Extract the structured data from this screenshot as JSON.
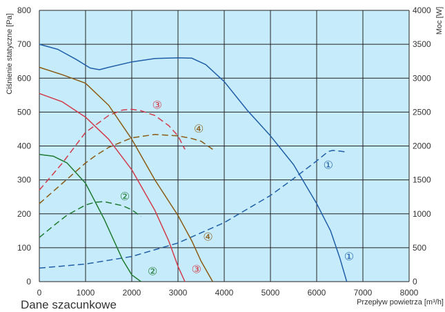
{
  "chart_data": {
    "type": "line",
    "xlabel": "Przepływ powietrza [m³/h]",
    "ylabel_left": "Ciśnienie statyczne [Pa]",
    "ylabel_right": "Moc [W]",
    "xlim": [
      0,
      8000
    ],
    "ylim_left": [
      0,
      800
    ],
    "ylim_right": [
      0,
      4000
    ],
    "x_ticks": [
      "0",
      "1000",
      "2000",
      "3000",
      "4000",
      "5000",
      "6000",
      "7000",
      "8000"
    ],
    "y_left_ticks": [
      "0",
      "100",
      "200",
      "300",
      "400",
      "500",
      "600",
      "700",
      "800"
    ],
    "y_right_ticks": [
      "0",
      "500",
      "1000",
      "1500",
      "2000",
      "2500",
      "3000",
      "3500",
      "4000"
    ],
    "grid": true,
    "background": "#c6ebfa",
    "series": [
      {
        "name": "①",
        "kind": "pressure",
        "axis": "left",
        "color": "#1f5ea8",
        "x": [
          0,
          400,
          800,
          1100,
          1300,
          1500,
          2000,
          2500,
          3000,
          3300,
          3600,
          4000,
          4500,
          5000,
          5500,
          6000,
          6300,
          6500,
          6650
        ],
        "y": [
          700,
          685,
          655,
          630,
          625,
          632,
          648,
          658,
          660,
          659,
          640,
          590,
          505,
          430,
          345,
          230,
          150,
          70,
          0
        ]
      },
      {
        "name": "①",
        "kind": "power",
        "axis": "right",
        "color": "#1f5ea8",
        "x": [
          0,
          1000,
          2000,
          3000,
          4000,
          5000,
          5500,
          6000,
          6250,
          6350,
          6500,
          6650
        ],
        "y": [
          200,
          260,
          370,
          570,
          870,
          1270,
          1520,
          1780,
          1920,
          1935,
          1925,
          1910
        ]
      },
      {
        "name": "③",
        "kind": "pressure",
        "axis": "right_of_left",
        "color": "#d23a4a",
        "x": [
          0,
          500,
          1000,
          1500,
          2000,
          2500,
          2800,
          3000,
          3150
        ],
        "y": [
          555,
          530,
          485,
          420,
          330,
          210,
          120,
          45,
          0
        ]
      },
      {
        "name": "③",
        "kind": "power",
        "axis": "right",
        "color": "#d23a4a",
        "x": [
          0,
          500,
          1000,
          1500,
          1800,
          2000,
          2200,
          2500,
          2800,
          3000,
          3150
        ],
        "y": [
          1350,
          1750,
          2200,
          2450,
          2530,
          2540,
          2520,
          2450,
          2300,
          2150,
          1950
        ]
      },
      {
        "name": "④",
        "kind": "pressure",
        "axis": "left",
        "color": "#8a5a14",
        "x": [
          0,
          500,
          1000,
          1500,
          2000,
          2500,
          3000,
          3300,
          3500,
          3750
        ],
        "y": [
          632,
          610,
          585,
          520,
          420,
          300,
          195,
          120,
          60,
          0
        ]
      },
      {
        "name": "④",
        "kind": "power",
        "axis": "right",
        "color": "#8a5a14",
        "x": [
          0,
          500,
          1000,
          1200,
          1500,
          2000,
          2500,
          3000,
          3300,
          3500,
          3750
        ],
        "y": [
          1150,
          1450,
          1750,
          1850,
          1980,
          2120,
          2170,
          2150,
          2110,
          2070,
          1950
        ]
      },
      {
        "name": "②",
        "kind": "pressure",
        "axis": "left",
        "color": "#1e7a32",
        "x": [
          0,
          300,
          600,
          1000,
          1400,
          1800,
          2000,
          2200
        ],
        "y": [
          375,
          370,
          350,
          290,
          185,
          65,
          20,
          0
        ]
      },
      {
        "name": "②",
        "kind": "power",
        "axis": "right",
        "color": "#1e7a32",
        "x": [
          0,
          300,
          600,
          1000,
          1200,
          1400,
          1600,
          1800,
          2000,
          2200
        ],
        "y": [
          650,
          820,
          980,
          1130,
          1170,
          1180,
          1150,
          1120,
          1060,
          960
        ]
      }
    ],
    "annotations": [
      {
        "text": "①",
        "x": 6250,
        "y": 345,
        "color": "#1f5ea8"
      },
      {
        "text": "①",
        "x": 6700,
        "y": 75,
        "color": "#1f5ea8"
      },
      {
        "text": "③",
        "x": 2550,
        "y": 522,
        "color": "#d23a4a"
      },
      {
        "text": "③",
        "x": 3400,
        "y": 38,
        "color": "#d23a4a"
      },
      {
        "text": "④",
        "x": 3450,
        "y": 452,
        "color": "#8a5a14"
      },
      {
        "text": "④",
        "x": 3650,
        "y": 133,
        "color": "#8a5a14"
      },
      {
        "text": "②",
        "x": 1850,
        "y": 252,
        "color": "#1e7a32"
      },
      {
        "text": "②",
        "x": 2450,
        "y": 32,
        "color": "#1e7a32"
      }
    ]
  },
  "footer_note": "Dane szacunkowe"
}
